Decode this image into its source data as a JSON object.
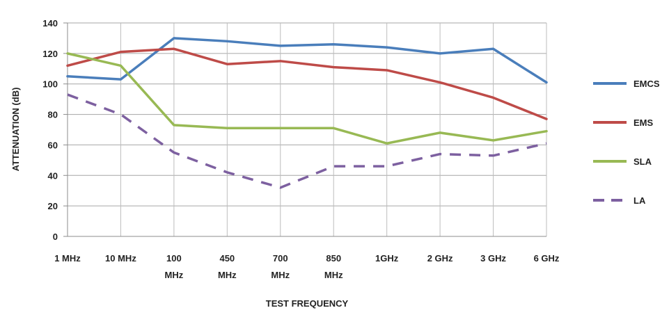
{
  "chart_data": {
    "type": "line",
    "title": "",
    "xlabel": "TEST FREQUENCY",
    "ylabel": "ATTENUATION (dB)",
    "ylim": [
      0,
      140
    ],
    "yticks": [
      "0",
      "20",
      "40",
      "60",
      "80",
      "100",
      "120",
      "140"
    ],
    "grid": "horizontal",
    "legend_position": "right",
    "categories": [
      [
        "1 MHz"
      ],
      [
        "10 MHz"
      ],
      [
        "100",
        "MHz"
      ],
      [
        "450",
        "MHz"
      ],
      [
        "700",
        "MHz"
      ],
      [
        "850",
        "MHz"
      ],
      [
        "1GHz"
      ],
      [
        "2 GHz"
      ],
      [
        "3 GHz"
      ],
      [
        "6 GHz"
      ]
    ],
    "series": [
      {
        "name": "EMCS",
        "color": "#4a7ebb",
        "dash": false,
        "values": [
          105,
          103,
          130,
          128,
          125,
          126,
          124,
          120,
          123,
          101
        ]
      },
      {
        "name": "EMS",
        "color": "#be4b48",
        "dash": false,
        "values": [
          112,
          121,
          123,
          113,
          115,
          111,
          109,
          101,
          91,
          77
        ]
      },
      {
        "name": "SLA",
        "color": "#98b954",
        "dash": false,
        "values": [
          120,
          112,
          73,
          71,
          71,
          71,
          61,
          68,
          63,
          69
        ]
      },
      {
        "name": "LA",
        "color": "#7d60a0",
        "dash": true,
        "values": [
          93,
          80,
          55,
          42,
          32,
          46,
          46,
          54,
          53,
          61
        ]
      }
    ]
  }
}
